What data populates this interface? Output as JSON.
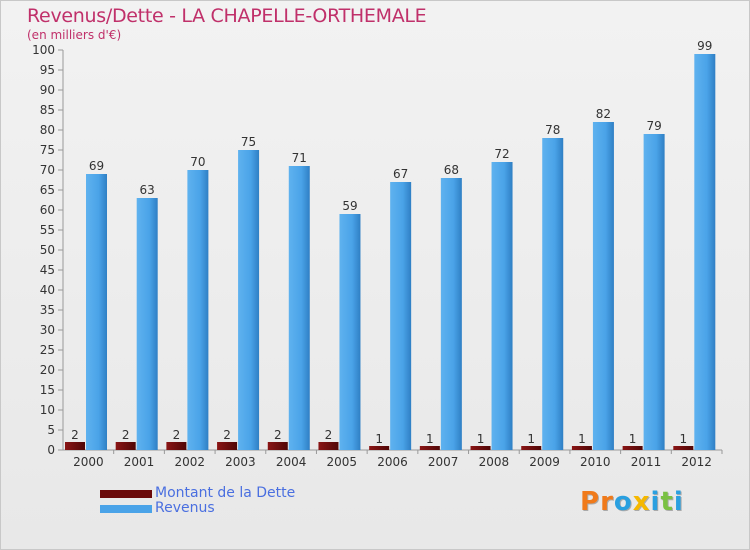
{
  "header": {
    "title": "Revenus/Dette - LA CHAPELLE-ORTHEMALE",
    "subtitle": "(en milliers d'€)"
  },
  "legend": {
    "items": [
      {
        "label": "Montant de la Dette",
        "color": "#6b0a0a"
      },
      {
        "label": "Revenus",
        "color": "#4aa3e8"
      }
    ]
  },
  "logo": {
    "letters": [
      "P",
      "r",
      "o",
      "x",
      "i",
      "t",
      "i"
    ],
    "colors": [
      "#f07a1a",
      "#f07a1a",
      "#2aa0e0",
      "#f5b800",
      "#2aa0e0",
      "#7ac143",
      "#2aa0e0"
    ]
  },
  "chart_data": {
    "type": "bar",
    "categories": [
      "2000",
      "2001",
      "2002",
      "2003",
      "2004",
      "2005",
      "2006",
      "2007",
      "2008",
      "2009",
      "2010",
      "2011",
      "2012"
    ],
    "series": [
      {
        "name": "Montant de la Dette",
        "values": [
          2,
          2,
          2,
          2,
          2,
          2,
          1,
          1,
          1,
          1,
          1,
          1,
          1
        ],
        "color": "#6b0a0a"
      },
      {
        "name": "Revenus",
        "values": [
          69,
          63,
          70,
          75,
          71,
          59,
          67,
          68,
          72,
          78,
          82,
          79,
          99
        ],
        "color": "#4aa3e8"
      }
    ],
    "yticks": [
      0,
      5,
      10,
      15,
      20,
      25,
      30,
      35,
      40,
      45,
      50,
      55,
      60,
      65,
      70,
      75,
      80,
      85,
      90,
      95,
      100
    ],
    "ylim": [
      0,
      100
    ],
    "grid": false,
    "legend_position": "bottom-left"
  }
}
